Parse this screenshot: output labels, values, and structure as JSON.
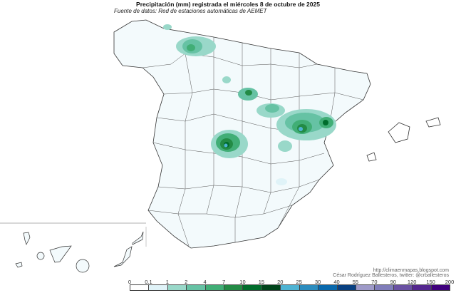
{
  "title": "Precipitación (mm) registrada el miércoles 8 de octubre de 2025",
  "subtitle": "Fuente de datos: Red de estaciones automáticas de AEMET",
  "credits": {
    "url": "http://climaenmapas.blogspot.com",
    "author": "César Rodríguez Ballesteros, twitter: @crballesteros"
  },
  "legend": {
    "labels": [
      "0",
      "0.1",
      "1",
      "2",
      "4",
      "7",
      "10",
      "15",
      "20",
      "25",
      "30",
      "40",
      "55",
      "70",
      "90",
      "120",
      "150",
      "200"
    ],
    "colors": [
      "#ffffff",
      "#e0f3f8",
      "#99d8c9",
      "#66c2a4",
      "#41ae76",
      "#238b45",
      "#006d2c",
      "#00441b",
      "#4eb3d3",
      "#2b8cbe",
      "#0868ac",
      "#084081",
      "#9e9ac8",
      "#807dba",
      "#6a51a3",
      "#54278f",
      "#3f007d"
    ]
  }
}
